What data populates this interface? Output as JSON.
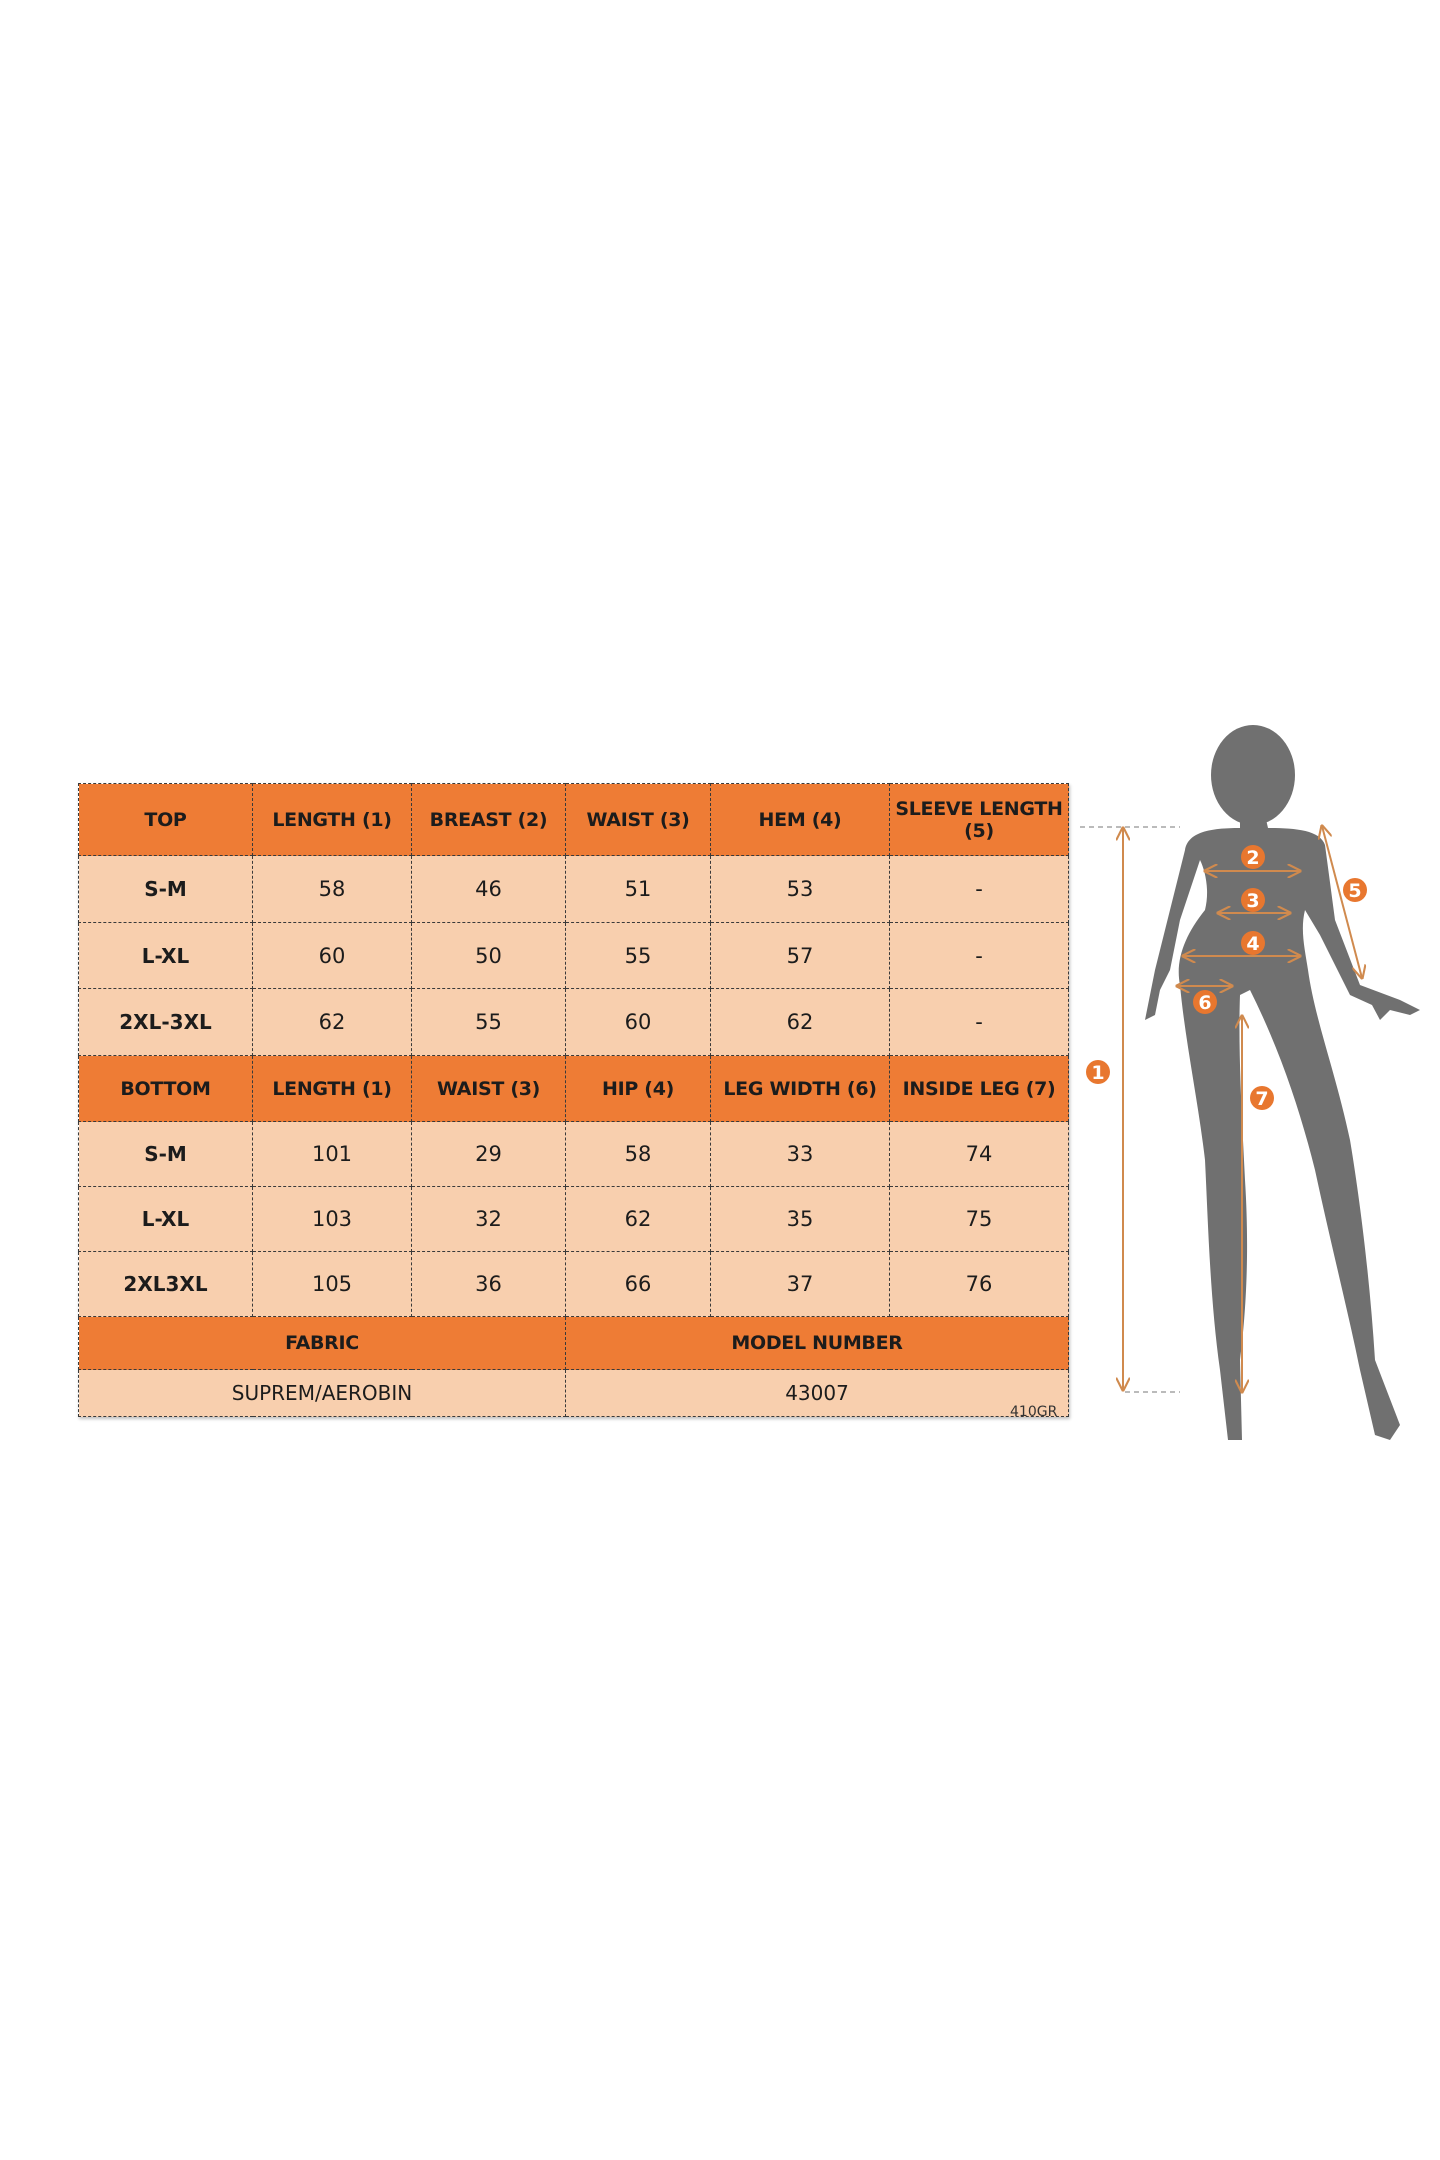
{
  "top": {
    "headers": [
      "TOP",
      "LENGTH (1)",
      "BREAST (2)",
      "WAIST (3)",
      "HEM (4)",
      "SLEEVE LENGTH (5)"
    ],
    "rows": [
      [
        "S-M",
        "58",
        "46",
        "51",
        "53",
        "-"
      ],
      [
        "L-XL",
        "60",
        "50",
        "55",
        "57",
        "-"
      ],
      [
        "2XL-3XL",
        "62",
        "55",
        "60",
        "62",
        "-"
      ]
    ]
  },
  "bottom": {
    "headers": [
      "BOTTOM",
      "LENGTH (1)",
      "WAIST (3)",
      "HIP (4)",
      "LEG WIDTH (6)",
      "INSIDE LEG (7)"
    ],
    "rows": [
      [
        "S-M",
        "101",
        "29",
        "58",
        "33",
        "74"
      ],
      [
        "L-XL",
        "103",
        "32",
        "62",
        "35",
        "75"
      ],
      [
        "2XL3XL",
        "105",
        "36",
        "66",
        "37",
        "76"
      ]
    ]
  },
  "info": {
    "fabric_label": "FABRIC",
    "model_label": "MODEL NUMBER",
    "fabric_value": "SUPREM/AEROBIN",
    "model_value": "43007"
  },
  "code": "410GR",
  "figure": {
    "markers": [
      "1",
      "2",
      "3",
      "4",
      "5",
      "6",
      "7"
    ],
    "colors": {
      "header": "#EE7C35",
      "cell": "#F8CFAE",
      "silhouette": "#707070",
      "arrow": "#D08A4E",
      "marker": "#E8772F"
    }
  }
}
